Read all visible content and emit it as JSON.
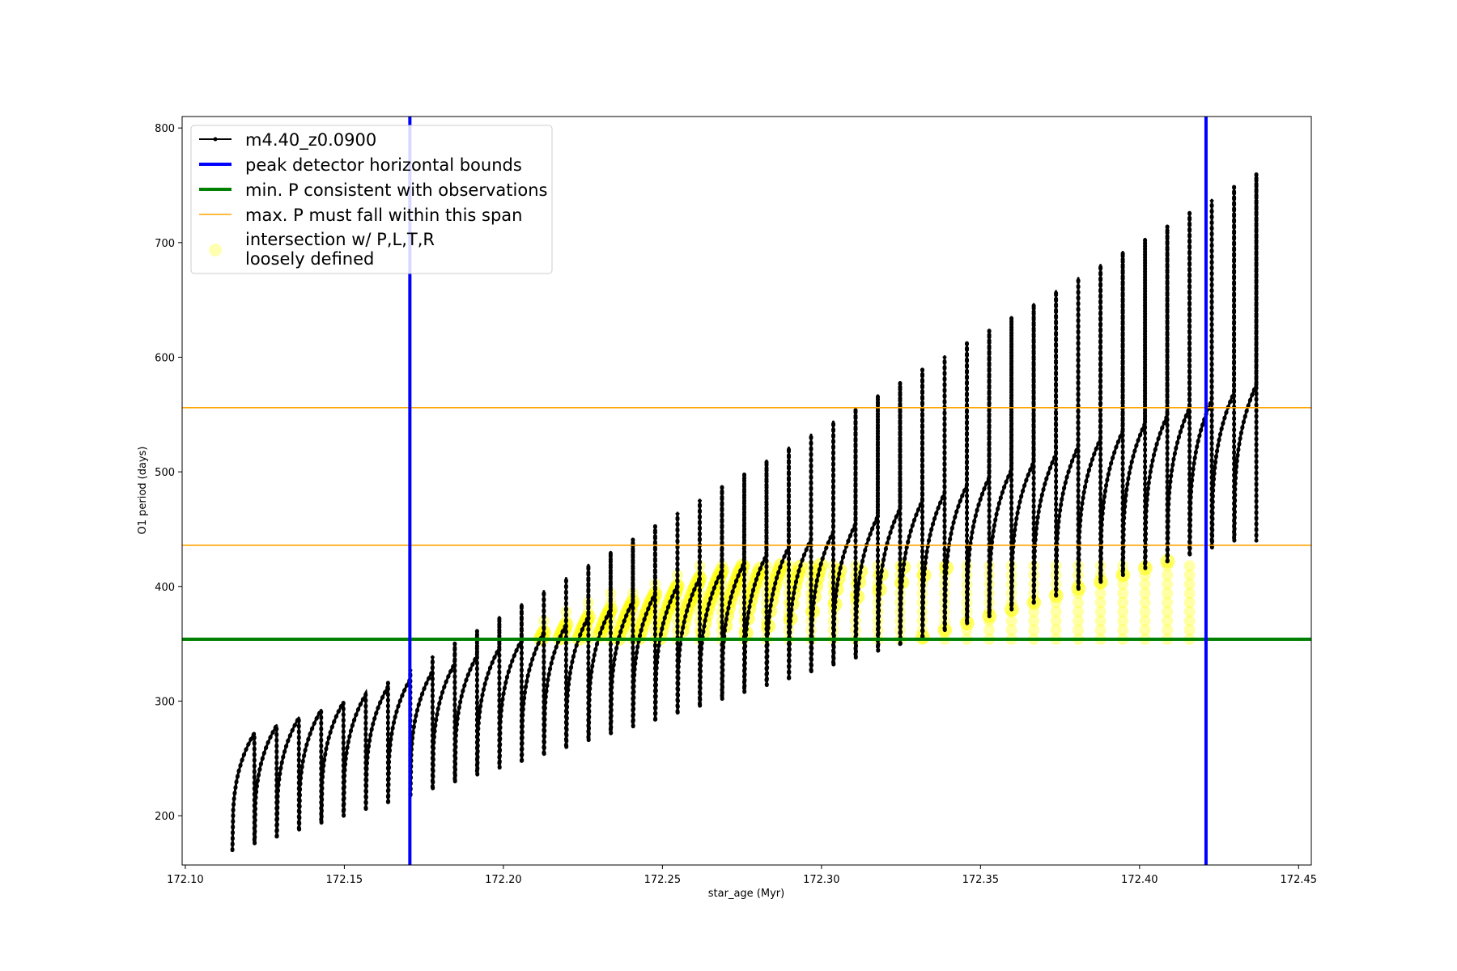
{
  "chart_data": {
    "type": "line",
    "title": "",
    "xlabel": "star_age (Myr)",
    "ylabel": "O1 period (days)",
    "xlim": [
      172.099,
      172.454
    ],
    "ylim": [
      157,
      810
    ],
    "xticks": [
      172.1,
      172.15,
      172.2,
      172.25,
      172.3,
      172.35,
      172.4,
      172.45
    ],
    "xtick_labels": [
      "172.10",
      "172.15",
      "172.20",
      "172.25",
      "172.30",
      "172.35",
      "172.40",
      "172.45"
    ],
    "yticks": [
      200,
      300,
      400,
      500,
      600,
      700,
      800
    ],
    "ytick_labels": [
      "200",
      "300",
      "400",
      "500",
      "600",
      "700",
      "800"
    ],
    "grid": false,
    "legend_position": "top-left",
    "colors": {
      "track": "#000000",
      "bounds": "#0000ff",
      "min_p": "#008000",
      "max_p": "#ffa500",
      "intersection": "#ffff00"
    },
    "series": [
      {
        "name": "m4.40_z0.0900",
        "kind": "pulse-track",
        "note_first_pulse": {
          "x_start": 172.1148,
          "x_end": 172.1222,
          "y_low": 170,
          "y_peak": 272,
          "y_spike": 248
        },
        "pulse_cycles_approx": 46,
        "x_range": [
          172.1148,
          172.4368
        ],
        "envelope_low_range": [
          170,
          440
        ],
        "envelope_plateau_range": [
          272,
          576
        ],
        "envelope_spike_range": [
          248,
          760
        ]
      },
      {
        "name": "peak detector horizontal bounds",
        "kind": "vline",
        "x": [
          172.1706,
          172.4209
        ]
      },
      {
        "name": "min. P consistent with observations",
        "kind": "hline",
        "y": [
          354
        ]
      },
      {
        "name": "max. P must fall within this span",
        "kind": "hline",
        "y": [
          436,
          556
        ]
      },
      {
        "name": "intersection w/ P,L,T,R\nloosely defined",
        "kind": "scatter-markers",
        "x_range": [
          172.1706,
          172.4209
        ],
        "y_range": [
          354,
          418
        ]
      }
    ]
  },
  "legend": {
    "items": [
      {
        "label": "m4.40_z0.0900",
        "style": "line-dot",
        "color": "#000000"
      },
      {
        "label": "peak detector horizontal bounds",
        "style": "thick-line",
        "color": "#0000ff"
      },
      {
        "label": "min. P consistent with observations",
        "style": "thick-line",
        "color": "#008000"
      },
      {
        "label": "max. P must fall within this span",
        "style": "thin-line",
        "color": "#ffa500"
      },
      {
        "label": "intersection w/ P,L,T,R",
        "label2": "loosely defined",
        "style": "marker",
        "color": "#ffff00"
      }
    ]
  }
}
